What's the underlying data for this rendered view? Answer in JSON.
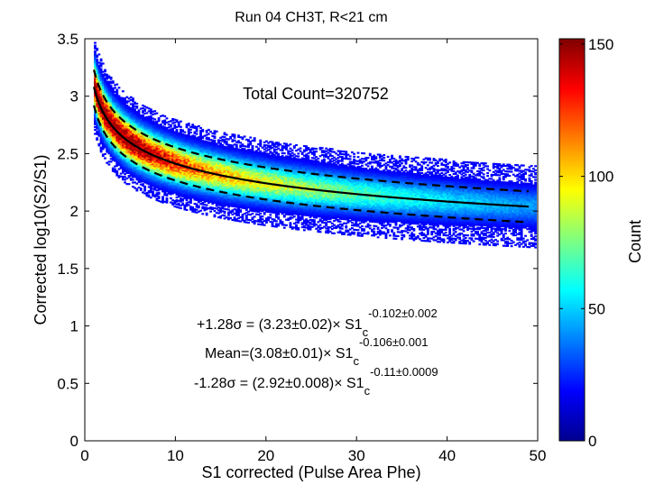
{
  "chart_data": {
    "type": "heatmap",
    "title": "Run 04 CH3T, R<21 cm",
    "xlabel": "S1 corrected (Pulse Area Phe)",
    "ylabel": "Corrected log10(S2/S1)",
    "xlim": [
      0,
      50
    ],
    "ylim": [
      0,
      3.5
    ],
    "xticks": [
      "0",
      "10",
      "20",
      "30",
      "40",
      "50"
    ],
    "yticks": [
      "0",
      "0.5",
      "1",
      "1.5",
      "2",
      "2.5",
      "3",
      "3.5"
    ],
    "total_count_label": "Total Count=320752",
    "colorbar": {
      "label": "Count",
      "range": [
        0,
        152
      ],
      "ticks": [
        "0",
        "50",
        "100",
        "150"
      ],
      "colormap": "jet"
    },
    "fits": {
      "upper": {
        "prefix": "+1.28σ = (3.23±0.02)×  S1",
        "sub": "c",
        "exponent": "-0.102±0.002",
        "a": 3.23,
        "b": -0.102,
        "style": "dashed"
      },
      "mean": {
        "prefix": "Mean=(3.08±0.01)×  S1",
        "sub": "c",
        "exponent": "-0.106±0.001",
        "a": 3.08,
        "b": -0.106,
        "style": "solid"
      },
      "lower": {
        "prefix": "-1.28σ = (2.92±0.008)×  S1",
        "sub": "c",
        "exponent": "-0.11±0.0009",
        "a": 2.92,
        "b": -0.11,
        "style": "dashed"
      }
    },
    "fit_x_range": [
      1,
      49
    ],
    "grid": false
  }
}
